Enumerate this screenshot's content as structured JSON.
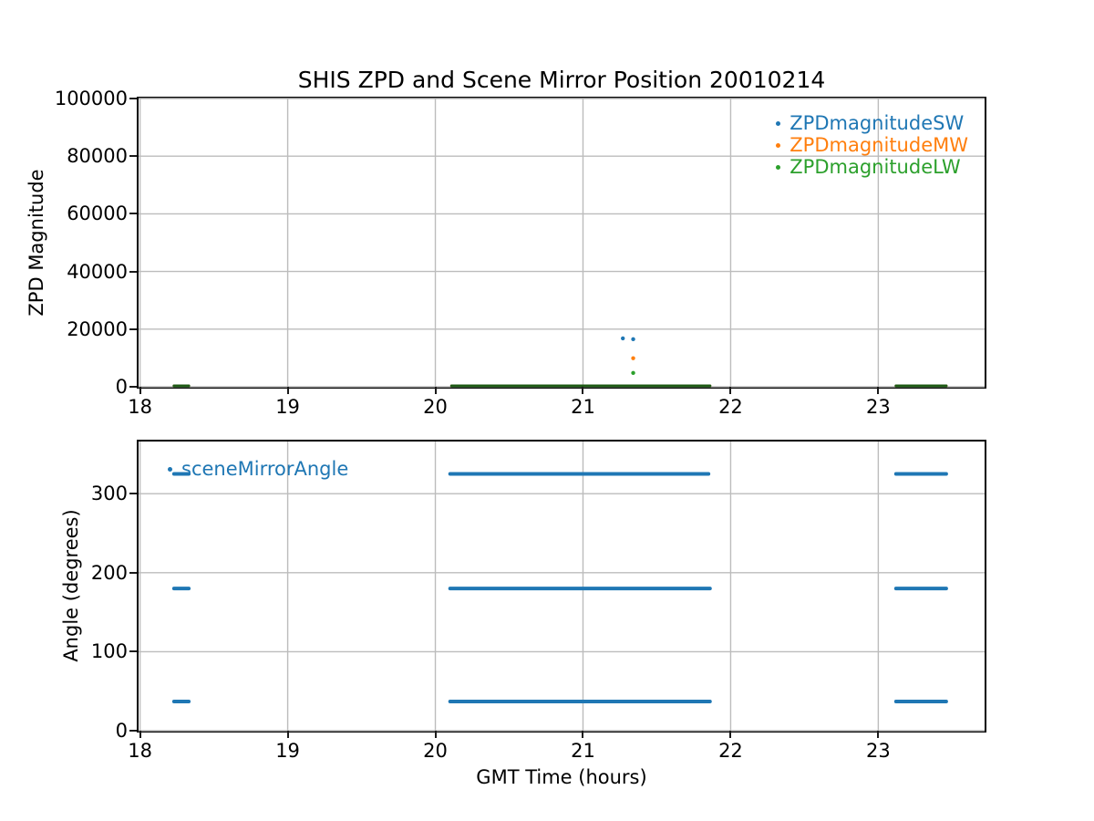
{
  "figure": {
    "title": "SHIS ZPD and Scene Mirror Position 20010214",
    "background_color": "#ffffff",
    "spine_color": "#000000",
    "tick_color": "#1a1a1a",
    "text_color": "#000000"
  },
  "chart_data": [
    {
      "type": "scatter",
      "ylabel": "ZPD Magnitude",
      "xlabel": "",
      "xlim": [
        17.99,
        23.72
      ],
      "ylim": [
        0,
        100000
      ],
      "xticks": [
        18,
        19,
        20,
        21,
        22,
        23
      ],
      "yticks": [
        0,
        20000,
        40000,
        60000,
        80000,
        100000
      ],
      "grid": true,
      "grid_color": "#bcbcbc",
      "legend_position": "upper right",
      "legend_frame": false,
      "series": [
        {
          "name": "ZPDmagnitudeSW",
          "color": "#1f77b4",
          "marker": "point",
          "line_width": 3,
          "segments": [
            {
              "x1": 18.23,
              "x2": 18.33,
              "y": 300
            },
            {
              "x1": 20.11,
              "x2": 21.86,
              "y": 300
            },
            {
              "x1": 23.12,
              "x2": 23.46,
              "y": 300
            }
          ],
          "points": [
            [
              21.27,
              16800
            ],
            [
              21.34,
              16500
            ]
          ]
        },
        {
          "name": "ZPDmagnitudeMW",
          "color": "#ff7f0e",
          "marker": "point",
          "line_width": 3,
          "segments": [
            {
              "x1": 18.23,
              "x2": 18.33,
              "y": 300
            },
            {
              "x1": 20.11,
              "x2": 21.86,
              "y": 300
            },
            {
              "x1": 23.12,
              "x2": 23.46,
              "y": 300
            }
          ],
          "points": [
            [
              21.34,
              9900
            ]
          ]
        },
        {
          "name": "ZPDmagnitudeLW",
          "color": "#2ca02c",
          "segment_color": "#1d5a14",
          "marker": "point",
          "line_width": 3,
          "segments": [
            {
              "x1": 18.23,
              "x2": 18.33,
              "y": 300
            },
            {
              "x1": 20.11,
              "x2": 21.86,
              "y": 300
            },
            {
              "x1": 23.12,
              "x2": 23.46,
              "y": 300
            }
          ],
          "points": [
            [
              21.34,
              4800
            ]
          ]
        }
      ]
    },
    {
      "type": "scatter",
      "ylabel": "Angle (degrees)",
      "xlabel": "GMT Time (hours)",
      "xlim": [
        17.99,
        23.72
      ],
      "ylim": [
        0,
        366
      ],
      "xticks": [
        18,
        19,
        20,
        21,
        22,
        23
      ],
      "yticks": [
        0,
        100,
        200,
        300
      ],
      "grid": true,
      "grid_color": "#bcbcbc",
      "legend_position": "upper left",
      "legend_frame": false,
      "series": [
        {
          "name": "sceneMirrorAngle",
          "color": "#1f77b4",
          "marker": "point",
          "line_width": 4,
          "segments": [
            {
              "x1": 18.23,
              "x2": 18.33,
              "y": 325
            },
            {
              "x1": 20.1,
              "x2": 21.85,
              "y": 325
            },
            {
              "x1": 23.12,
              "x2": 23.46,
              "y": 325
            },
            {
              "x1": 18.23,
              "x2": 18.33,
              "y": 180
            },
            {
              "x1": 20.1,
              "x2": 21.86,
              "y": 180
            },
            {
              "x1": 23.12,
              "x2": 23.46,
              "y": 180
            },
            {
              "x1": 18.23,
              "x2": 18.33,
              "y": 37
            },
            {
              "x1": 20.1,
              "x2": 21.86,
              "y": 37
            },
            {
              "x1": 23.12,
              "x2": 23.46,
              "y": 37
            }
          ],
          "points": []
        }
      ]
    }
  ]
}
